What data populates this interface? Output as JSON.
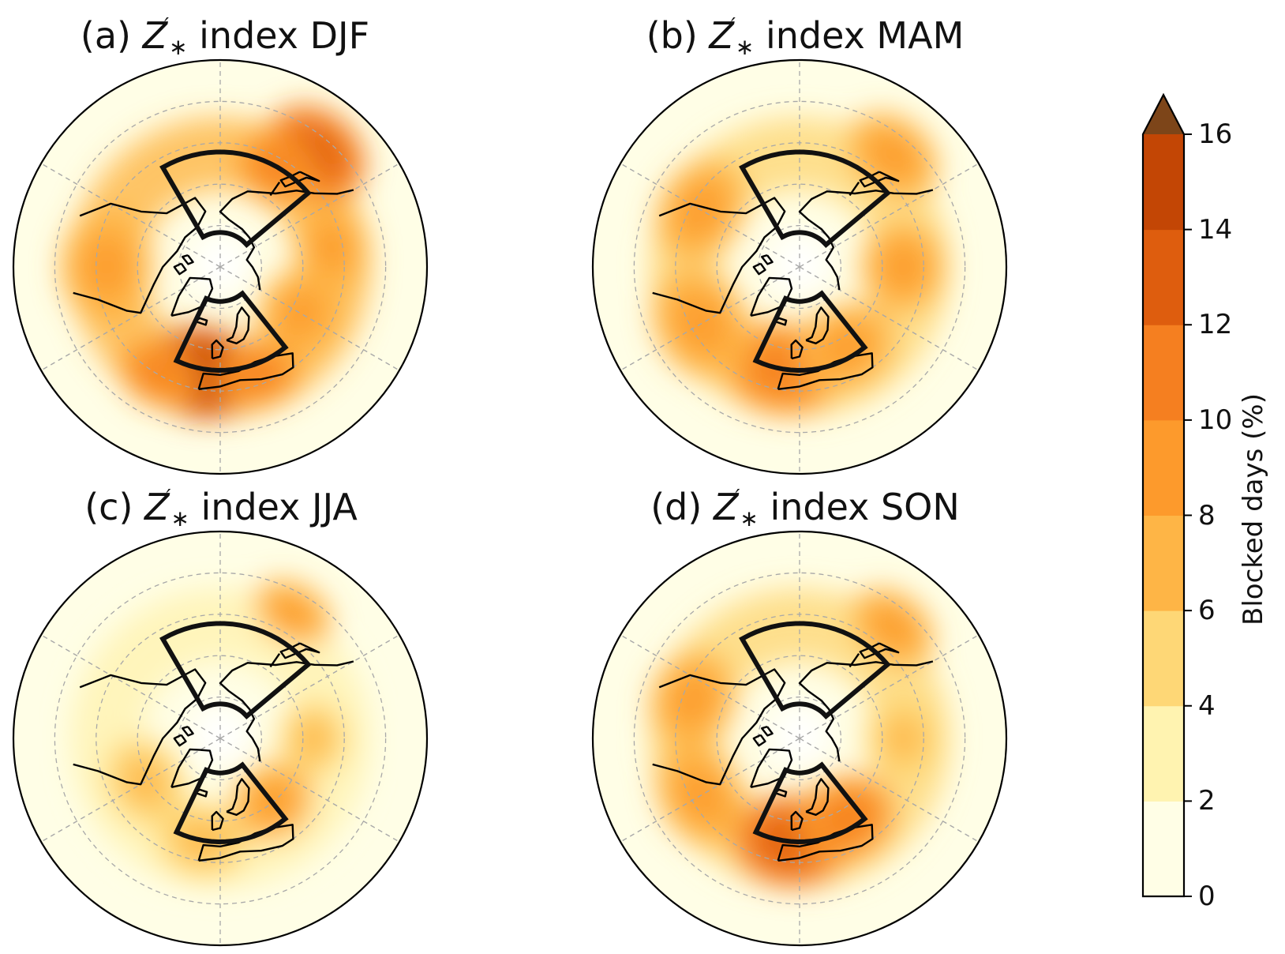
{
  "panels": [
    {
      "id": "a",
      "prefix": "(a)",
      "suffix": "index DJF",
      "season": "DJF",
      "blobs": [
        {
          "lon": 140,
          "r": 0.72,
          "rx": 0.26,
          "ry": 0.2,
          "level": 11
        },
        {
          "lon": 150,
          "r": 0.55,
          "rx": 0.2,
          "ry": 0.16,
          "level": 9
        },
        {
          "lon": -10,
          "r": 0.52,
          "rx": 0.28,
          "ry": 0.22,
          "level": 12
        },
        {
          "lon": -30,
          "r": 0.6,
          "rx": 0.2,
          "ry": 0.15,
          "level": 9
        },
        {
          "lon": 20,
          "r": 0.55,
          "rx": 0.2,
          "ry": 0.16,
          "level": 8
        },
        {
          "lon": 60,
          "r": 0.45,
          "rx": 0.22,
          "ry": 0.2,
          "level": 7
        },
        {
          "lon": -90,
          "r": 0.55,
          "rx": 0.28,
          "ry": 0.22,
          "level": 7
        },
        {
          "lon": 100,
          "r": 0.55,
          "rx": 0.22,
          "ry": 0.18,
          "level": 6
        }
      ]
    },
    {
      "id": "b",
      "prefix": "(b)",
      "suffix": "index MAM",
      "season": "MAM",
      "blobs": [
        {
          "lon": 140,
          "r": 0.7,
          "rx": 0.24,
          "ry": 0.18,
          "level": 7
        },
        {
          "lon": -10,
          "r": 0.5,
          "rx": 0.28,
          "ry": 0.22,
          "level": 8
        },
        {
          "lon": 30,
          "r": 0.45,
          "rx": 0.24,
          "ry": 0.2,
          "level": 7
        },
        {
          "lon": -60,
          "r": 0.55,
          "rx": 0.28,
          "ry": 0.22,
          "level": 7
        },
        {
          "lon": -120,
          "r": 0.55,
          "rx": 0.26,
          "ry": 0.2,
          "level": 6
        },
        {
          "lon": 90,
          "r": 0.5,
          "rx": 0.22,
          "ry": 0.2,
          "level": 6
        }
      ]
    },
    {
      "id": "c",
      "prefix": "(c)",
      "suffix": "index JJA",
      "season": "JJA",
      "blobs": [
        {
          "lon": 150,
          "r": 0.7,
          "rx": 0.2,
          "ry": 0.14,
          "level": 6
        },
        {
          "lon": -10,
          "r": 0.5,
          "rx": 0.22,
          "ry": 0.18,
          "level": 5
        },
        {
          "lon": 40,
          "r": 0.4,
          "rx": 0.2,
          "ry": 0.18,
          "level": 6
        },
        {
          "lon": -60,
          "r": 0.42,
          "rx": 0.22,
          "ry": 0.18,
          "level": 5
        },
        {
          "lon": 90,
          "r": 0.45,
          "rx": 0.18,
          "ry": 0.16,
          "level": 4
        }
      ]
    },
    {
      "id": "d",
      "prefix": "(d)",
      "suffix": "index SON",
      "season": "SON",
      "blobs": [
        {
          "lon": 140,
          "r": 0.7,
          "rx": 0.22,
          "ry": 0.16,
          "level": 7
        },
        {
          "lon": -5,
          "r": 0.5,
          "rx": 0.28,
          "ry": 0.22,
          "level": 10
        },
        {
          "lon": 30,
          "r": 0.45,
          "rx": 0.24,
          "ry": 0.2,
          "level": 9
        },
        {
          "lon": -60,
          "r": 0.55,
          "rx": 0.26,
          "ry": 0.2,
          "level": 7
        },
        {
          "lon": -110,
          "r": 0.55,
          "rx": 0.24,
          "ry": 0.2,
          "level": 6
        },
        {
          "lon": 90,
          "r": 0.5,
          "rx": 0.2,
          "ry": 0.18,
          "level": 5
        }
      ]
    }
  ],
  "colorbar": {
    "label": "Blocked days (%)",
    "ticks": [
      "0",
      "2",
      "4",
      "6",
      "8",
      "10",
      "12",
      "14",
      "16"
    ],
    "colors": [
      "#fffee6",
      "#fff3b0",
      "#fed776",
      "#feb546",
      "#fd9a2c",
      "#f57f20",
      "#de5d0e",
      "#c34605"
    ],
    "extend_color": "#7d4519",
    "range": [
      0,
      16
    ]
  },
  "regions": {
    "pacific": {
      "lon": [
        130,
        210
      ],
      "lat": [
        40,
        75
      ]
    },
    "atlantic": {
      "lon": [
        -25,
        40
      ],
      "lat": [
        45,
        75
      ]
    }
  }
}
